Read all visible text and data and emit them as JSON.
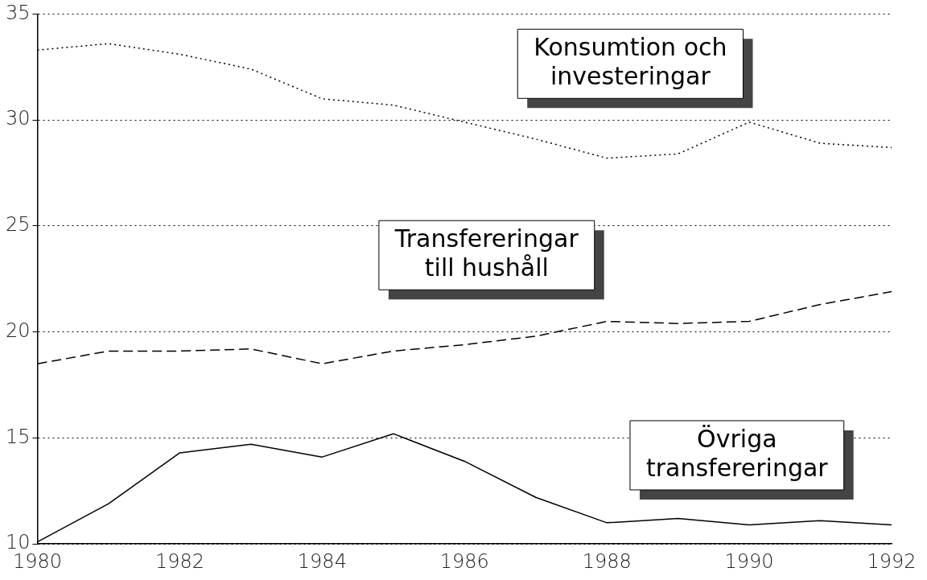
{
  "chart_data": {
    "type": "line",
    "x": [
      1980,
      1981,
      1982,
      1983,
      1984,
      1985,
      1986,
      1987,
      1988,
      1989,
      1990,
      1991,
      1992
    ],
    "xlim": [
      1980,
      1992
    ],
    "xticks": [
      1980,
      1982,
      1984,
      1986,
      1988,
      1990,
      1992
    ],
    "ylim": [
      10,
      35
    ],
    "yticks": [
      10,
      15,
      20,
      25,
      30,
      35
    ],
    "grid": "y",
    "legend": false,
    "marker": "none",
    "series": [
      {
        "name": "Konsumtion och investeringar",
        "color": "#000000",
        "line_style": "dotted",
        "values": [
          33.3,
          33.6,
          33.1,
          32.4,
          31.0,
          30.7,
          29.9,
          29.1,
          28.2,
          28.4,
          29.9,
          28.9,
          28.7
        ]
      },
      {
        "name": "Transfereringar till hushåll",
        "color": "#000000",
        "line_style": "dashed",
        "values": [
          18.5,
          19.1,
          19.1,
          19.2,
          18.5,
          19.1,
          19.4,
          19.8,
          20.5,
          20.4,
          20.5,
          21.3,
          21.9
        ]
      },
      {
        "name": "Övriga transfereringar",
        "color": "#000000",
        "line_style": "solid",
        "values": [
          10.1,
          11.9,
          14.3,
          14.7,
          14.1,
          15.2,
          13.9,
          12.2,
          11.0,
          11.2,
          10.9,
          11.1,
          10.9
        ]
      }
    ]
  }
}
